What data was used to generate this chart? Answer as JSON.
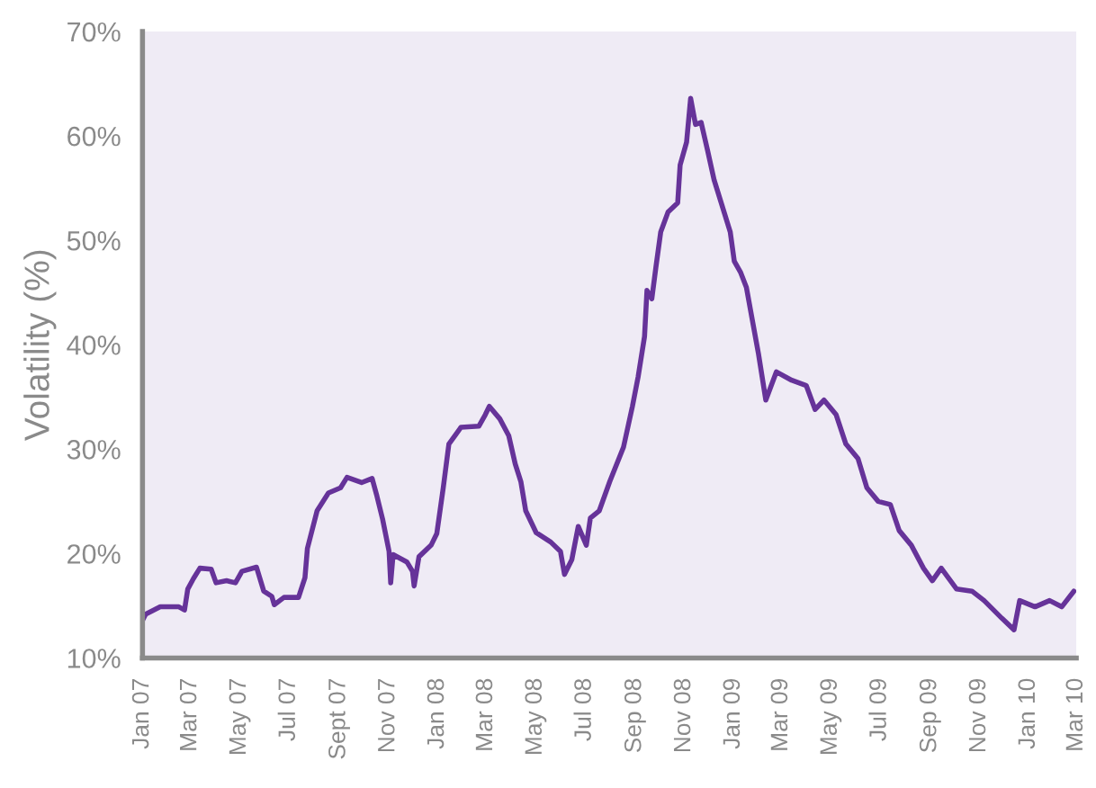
{
  "chart_data": {
    "type": "line",
    "ylabel": "Volatility (%)",
    "x": [
      "2007-01-01",
      "2007-01-05",
      "2007-01-23",
      "2007-02-15",
      "2007-02-22",
      "2007-02-26",
      "2007-03-05",
      "2007-03-13",
      "2007-03-27",
      "2007-04-02",
      "2007-04-15",
      "2007-04-26",
      "2007-05-04",
      "2007-05-22",
      "2007-05-31",
      "2007-06-10",
      "2007-06-13",
      "2007-06-25",
      "2007-07-13",
      "2007-07-21",
      "2007-07-24",
      "2007-08-05",
      "2007-08-19",
      "2007-09-03",
      "2007-09-11",
      "2007-09-29",
      "2007-10-12",
      "2007-10-18",
      "2007-10-25",
      "2007-11-02",
      "2007-11-04",
      "2007-11-07",
      "2007-11-24",
      "2007-12-01",
      "2007-12-03",
      "2007-12-09",
      "2007-12-24",
      "2007-12-31",
      "2008-01-08",
      "2008-01-15",
      "2008-01-30",
      "2008-02-21",
      "2008-02-29",
      "2008-03-05",
      "2008-03-18",
      "2008-03-29",
      "2008-04-06",
      "2008-04-13",
      "2008-04-19",
      "2008-05-02",
      "2008-05-20",
      "2008-06-01",
      "2008-06-06",
      "2008-06-15",
      "2008-06-23",
      "2008-07-03",
      "2008-07-08",
      "2008-07-19",
      "2008-08-01",
      "2008-08-18",
      "2008-08-29",
      "2008-09-05",
      "2008-09-13",
      "2008-09-16",
      "2008-09-22",
      "2008-09-27",
      "2008-10-03",
      "2008-10-12",
      "2008-10-24",
      "2008-10-27",
      "2008-11-04",
      "2008-11-09",
      "2008-11-15",
      "2008-11-22",
      "2008-11-30",
      "2008-12-08",
      "2008-12-18",
      "2008-12-28",
      "2009-01-02",
      "2009-01-10",
      "2009-01-17",
      "2009-01-24",
      "2009-02-01",
      "2009-02-10",
      "2009-02-23",
      "2009-03-14",
      "2009-04-01",
      "2009-04-12",
      "2009-04-23",
      "2009-05-08",
      "2009-05-20",
      "2009-06-04",
      "2009-06-15",
      "2009-06-29",
      "2009-07-14",
      "2009-07-25",
      "2009-08-09",
      "2009-08-24",
      "2009-09-04",
      "2009-09-15",
      "2009-10-04",
      "2009-10-23",
      "2009-11-07",
      "2009-11-29",
      "2009-12-14",
      "2009-12-21",
      "2010-01-09",
      "2010-01-27",
      "2010-02-11",
      "2010-02-26"
    ],
    "series": [
      {
        "color": "#663399",
        "values": [
          13.6,
          14.2,
          14.9,
          14.9,
          14.6,
          16.6,
          17.6,
          18.6,
          18.5,
          17.2,
          17.4,
          17.2,
          18.3,
          18.7,
          16.4,
          15.9,
          15.1,
          15.8,
          15.8,
          17.7,
          20.5,
          24.1,
          25.8,
          26.3,
          27.3,
          26.8,
          27.2,
          25.5,
          23.3,
          20.2,
          17.2,
          19.9,
          19.2,
          18.3,
          16.9,
          19.7,
          20.8,
          21.9,
          26.3,
          30.5,
          32.1,
          32.2,
          33.3,
          34.1,
          32.9,
          31.3,
          28.6,
          26.9,
          24.1,
          22.0,
          21.1,
          20.2,
          18.0,
          19.4,
          22.6,
          20.8,
          23.4,
          24.1,
          26.9,
          30.2,
          34.1,
          36.9,
          40.8,
          45.2,
          44.4,
          47.4,
          50.8,
          52.7,
          53.6,
          57.2,
          59.4,
          63.6,
          61.1,
          61.3,
          58.6,
          55.8,
          53.3,
          50.8,
          48.0,
          46.9,
          45.5,
          42.5,
          39.1,
          34.7,
          37.4,
          36.6,
          36.1,
          33.8,
          34.7,
          33.3,
          30.5,
          29.1,
          26.3,
          25.0,
          24.7,
          22.2,
          20.8,
          18.6,
          17.4,
          18.6,
          16.6,
          16.4,
          15.5,
          13.8,
          12.7,
          15.5,
          14.9,
          15.5,
          14.9,
          16.4
        ]
      }
    ],
    "xlim": [
      "2007-01-01",
      "2010-03-01"
    ],
    "xticks": [
      {
        "value": "2007-01-01",
        "label": "Jan 07"
      },
      {
        "value": "2007-03-01",
        "label": "Mar 07"
      },
      {
        "value": "2007-05-01",
        "label": "May 07"
      },
      {
        "value": "2007-07-01",
        "label": "Jul 07"
      },
      {
        "value": "2007-09-01",
        "label": "Sept 07"
      },
      {
        "value": "2007-11-01",
        "label": "Nov 07"
      },
      {
        "value": "2008-01-01",
        "label": "Jan 08"
      },
      {
        "value": "2008-03-01",
        "label": "Mar 08"
      },
      {
        "value": "2008-05-01",
        "label": "May 08"
      },
      {
        "value": "2008-07-01",
        "label": "Jul 08"
      },
      {
        "value": "2008-09-01",
        "label": "Sep 08"
      },
      {
        "value": "2008-11-01",
        "label": "Nov 08"
      },
      {
        "value": "2009-01-01",
        "label": "Jan 09"
      },
      {
        "value": "2009-03-01",
        "label": "Mar 09"
      },
      {
        "value": "2009-05-01",
        "label": "May 09"
      },
      {
        "value": "2009-07-01",
        "label": "Jul 09"
      },
      {
        "value": "2009-09-01",
        "label": "Sep 09"
      },
      {
        "value": "2009-11-01",
        "label": "Nov 09"
      },
      {
        "value": "2010-01-01",
        "label": "Jan 10"
      },
      {
        "value": "2010-03-01",
        "label": "Mar 10"
      }
    ],
    "ylim": [
      10,
      70
    ],
    "yticks": [
      {
        "value": 10,
        "label": "10%"
      },
      {
        "value": 20,
        "label": "20%"
      },
      {
        "value": 30,
        "label": "30%"
      },
      {
        "value": 40,
        "label": "40%"
      },
      {
        "value": 50,
        "label": "50%"
      },
      {
        "value": 60,
        "label": "60%"
      },
      {
        "value": 70,
        "label": "70%"
      }
    ],
    "grid": false,
    "legend": false,
    "marker": "none",
    "line_style": "solid"
  }
}
